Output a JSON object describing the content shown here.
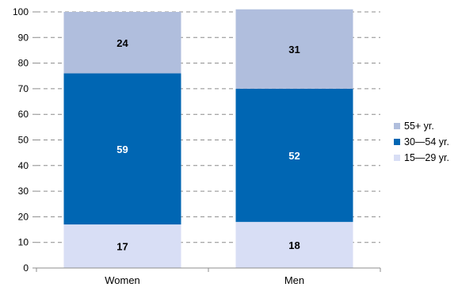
{
  "chart_data": {
    "type": "bar",
    "stacked": true,
    "categories": [
      "Women",
      "Men"
    ],
    "series": [
      {
        "name": "15—29 yr.",
        "values": [
          17,
          18
        ],
        "color": "#d8def5",
        "label_color": "#000000"
      },
      {
        "name": "30—54 yr.",
        "values": [
          59,
          52
        ],
        "color": "#0066b3",
        "label_color": "#ffffff"
      },
      {
        "name": "55+ yr.",
        "values": [
          24,
          31
        ],
        "color": "#b0bedd",
        "label_color": "#000000"
      }
    ],
    "legend_order": [
      "55+ yr.",
      "30—54 yr.",
      "15—29 yr."
    ],
    "ylim": [
      0,
      100
    ],
    "yticks": [
      0,
      10,
      20,
      30,
      40,
      50,
      60,
      70,
      80,
      90,
      100
    ],
    "grid": "dashed horizontal",
    "legend_position": "right",
    "title": "",
    "xlabel": "",
    "ylabel": ""
  }
}
